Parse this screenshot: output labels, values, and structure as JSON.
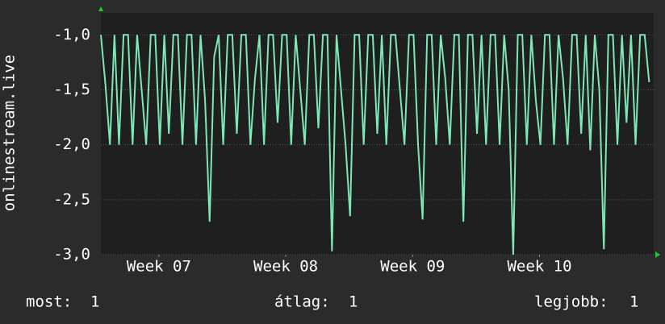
{
  "chart_data": {
    "type": "line",
    "y_label": "onlinestream.live",
    "x": [
      0,
      0.25,
      0.5,
      0.75,
      1,
      1.25,
      1.5,
      1.75,
      2,
      2.25,
      2.5,
      2.75,
      3,
      3.25,
      3.5,
      3.75,
      4,
      4.25,
      4.5,
      4.75,
      5,
      5.25,
      5.5,
      5.75,
      6,
      6.25,
      6.5,
      6.75,
      7,
      7.25,
      7.5,
      7.75,
      8,
      8.25,
      8.5,
      8.75,
      9,
      9.25,
      9.5,
      9.75,
      10,
      10.25,
      10.5,
      10.75,
      11,
      11.25,
      11.5,
      11.75,
      12,
      12.25,
      12.5,
      12.75,
      13,
      13.25,
      13.5,
      13.75,
      14,
      14.25,
      14.5,
      14.75,
      15,
      15.25,
      15.5,
      15.75,
      16,
      16.25,
      16.5,
      16.75,
      17,
      17.25,
      17.5,
      17.75,
      18,
      18.25,
      18.5,
      18.75,
      19,
      19.25,
      19.5,
      19.75,
      20,
      20.25,
      20.5,
      20.75,
      21,
      21.25,
      21.5,
      21.75,
      22,
      22.25,
      22.5,
      22.75,
      23,
      23.25,
      23.5,
      23.75,
      24,
      24.25,
      24.5,
      24.75,
      25,
      25.25,
      25.5,
      25.75,
      26,
      26.25,
      26.5,
      26.75,
      27,
      27.25,
      27.5,
      27.75,
      28,
      28.25,
      28.5,
      28.75,
      29,
      29.25,
      29.5,
      29.75,
      30,
      30.25
    ],
    "series": [
      {
        "color": "#7de8b4",
        "values": [
          -1,
          -1.45,
          -2,
          -1,
          -2,
          -1,
          -1,
          -2,
          -1,
          -1.5,
          -2,
          -1,
          -1,
          -2,
          -1,
          -1.9,
          -1,
          -1,
          -2,
          -1,
          -1,
          -2,
          -1,
          -1.6,
          -2.7,
          -1.2,
          -1,
          -2,
          -1,
          -1,
          -1.9,
          -1,
          -1,
          -2,
          -1.4,
          -1,
          -2,
          -1,
          -1,
          -1.8,
          -1,
          -1,
          -2,
          -1,
          -1.5,
          -2,
          -1,
          -1,
          -1.85,
          -1,
          -1,
          -2.97,
          -1,
          -1.5,
          -2,
          -2.65,
          -1,
          -1,
          -2,
          -1,
          -1,
          -1.9,
          -1,
          -2,
          -1,
          -1,
          -1.5,
          -2,
          -1,
          -1,
          -2,
          -2.68,
          -1,
          -1,
          -2,
          -1,
          -1.4,
          -2,
          -1,
          -1,
          -2.7,
          -1,
          -1,
          -1.9,
          -1,
          -2,
          -1,
          -1,
          -2,
          -1,
          -1.5,
          -3.0,
          -1,
          -1,
          -2,
          -1,
          -1.6,
          -2,
          -1,
          -1,
          -2,
          -1,
          -1.4,
          -2,
          -1,
          -1,
          -1.9,
          -1,
          -2.05,
          -1,
          -1.5,
          -2.95,
          -1,
          -1,
          -2,
          -1,
          -1.8,
          -1,
          -2,
          -1,
          -1,
          -1.43
        ]
      }
    ],
    "xlim": [
      0,
      30.5
    ],
    "xticks": [
      {
        "value": 3.2,
        "label": "Week 07"
      },
      {
        "value": 10.2,
        "label": "Week 08"
      },
      {
        "value": 17.2,
        "label": "Week 09"
      },
      {
        "value": 24.2,
        "label": "Week 10"
      }
    ],
    "ylim": [
      -3,
      -0.8
    ],
    "yticks": [
      {
        "value": -3,
        "label": "-3,0"
      },
      {
        "value": -2.5,
        "label": "-2,5"
      },
      {
        "value": -2,
        "label": "-2,0"
      },
      {
        "value": -1.5,
        "label": "-1,5"
      },
      {
        "value": -1,
        "label": "-1,0"
      }
    ],
    "grid": true,
    "stats": [
      {
        "label": "most:",
        "value": 1
      },
      {
        "label": "átlag:",
        "value": 1
      },
      {
        "label": "legjobb:",
        "value": 1
      }
    ]
  }
}
